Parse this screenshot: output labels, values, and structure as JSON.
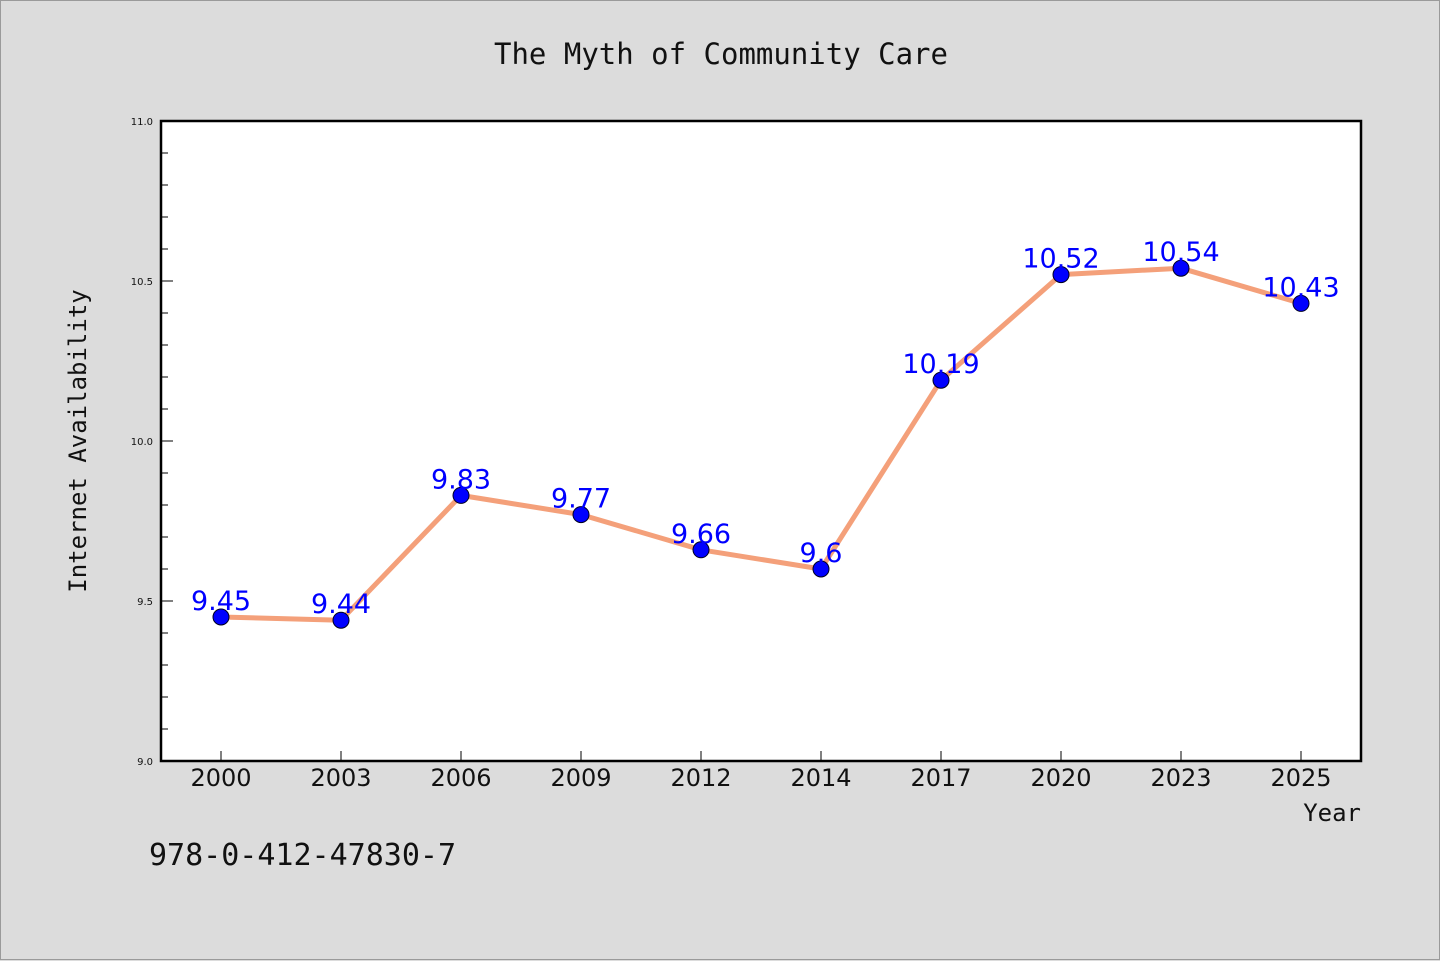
{
  "chart_data": {
    "type": "line",
    "title": "The Myth of Community Care",
    "xlabel": "Year",
    "ylabel": "Internet Availability",
    "categories": [
      "2000",
      "2003",
      "2006",
      "2009",
      "2012",
      "2014",
      "2017",
      "2020",
      "2023",
      "2025"
    ],
    "series": [
      {
        "values": [
          9.45,
          9.44,
          9.83,
          9.77,
          9.66,
          9.6,
          10.19,
          10.52,
          10.54,
          10.43
        ],
        "data_labels": [
          "9.45",
          "9.44",
          "9.83",
          "9.77",
          "9.66",
          "9.6",
          "10.19",
          "10.52",
          "10.54",
          "10.43"
        ]
      }
    ],
    "ylim": [
      9.0,
      11.0
    ],
    "yticks": [
      "9.0",
      "9.5",
      "10.0",
      "10.5",
      "11.0"
    ],
    "grid": false,
    "colors": {
      "line": "#f4a07a",
      "marker": "#0000ff",
      "label": "#0000ff",
      "background": "#dcdcdc",
      "plot_background": "#ffffff"
    }
  },
  "annotation": {
    "isbn": "978-0-412-47830-7"
  }
}
